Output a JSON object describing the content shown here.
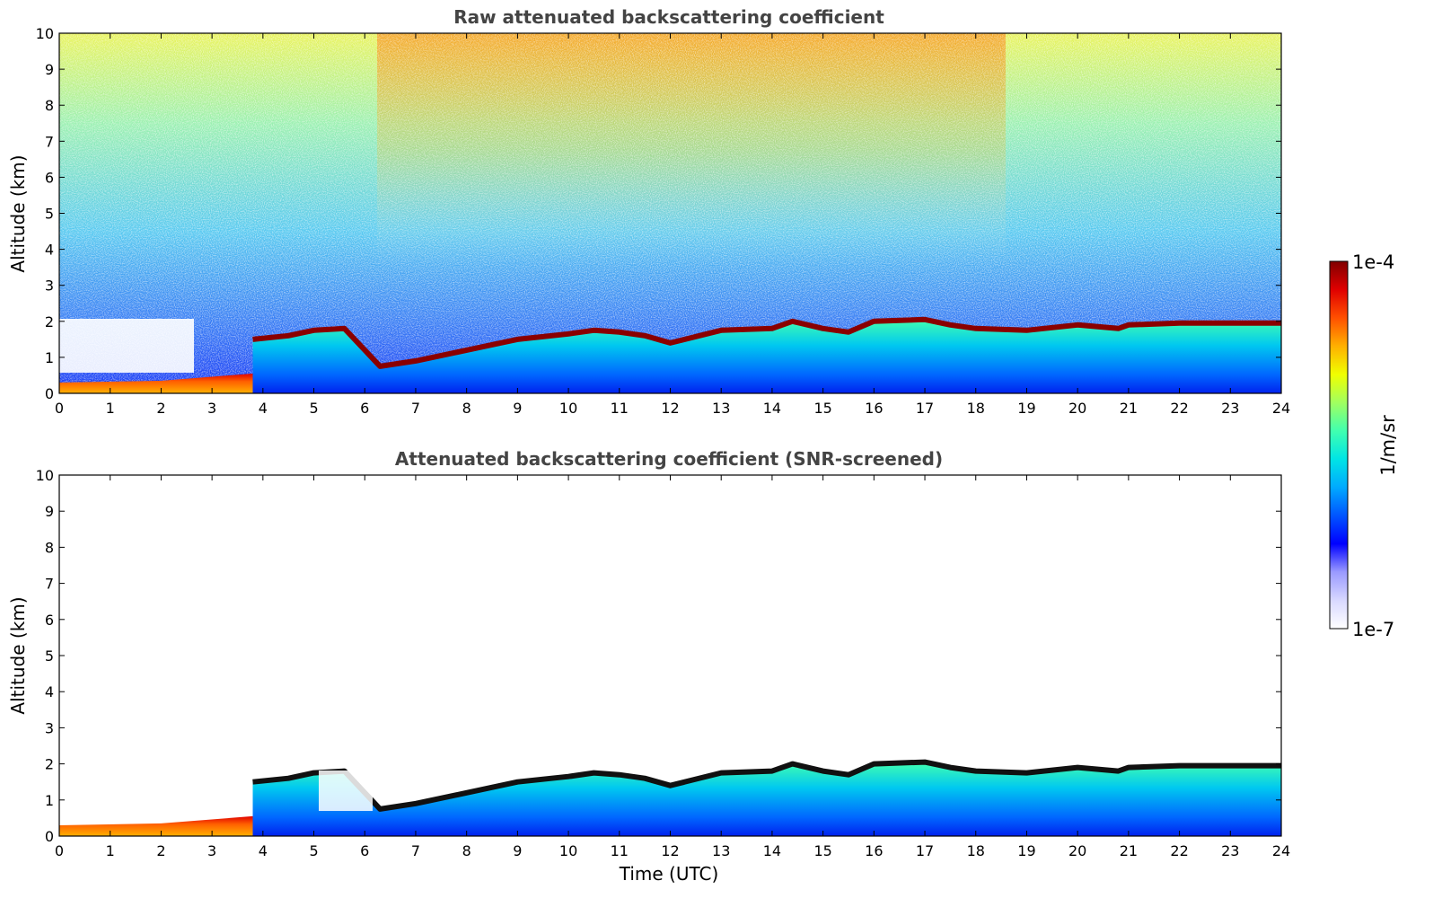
{
  "chart_data": [
    {
      "type": "heatmap",
      "title": "Raw attenuated backscattering coefficient",
      "xlabel": "",
      "ylabel": "Altitude (km)",
      "xlim": [
        0,
        24
      ],
      "ylim": [
        0,
        10
      ],
      "xticks": [
        0,
        1,
        2,
        3,
        4,
        5,
        6,
        7,
        8,
        9,
        10,
        11,
        12,
        13,
        14,
        15,
        16,
        17,
        18,
        19,
        20,
        21,
        22,
        23,
        24
      ],
      "yticks": [
        0,
        1,
        2,
        3,
        4,
        5,
        6,
        7,
        8,
        9,
        10
      ],
      "colorscale": "jet",
      "noise_background": true,
      "boundary_layer_top_km": {
        "x": [
          3.8,
          4.5,
          5.0,
          5.6,
          6.3,
          7.0,
          8.0,
          9.0,
          10.0,
          10.5,
          11.0,
          11.5,
          12.0,
          13.0,
          14.0,
          14.4,
          15.0,
          15.5,
          16.0,
          17.0,
          17.5,
          18.0,
          19.0,
          20.0,
          20.8,
          21.0,
          22.0,
          23.0,
          24.0
        ],
        "y": [
          1.5,
          1.6,
          1.75,
          1.8,
          0.75,
          0.9,
          1.2,
          1.5,
          1.65,
          1.75,
          1.7,
          1.6,
          1.4,
          1.75,
          1.8,
          2.0,
          1.8,
          1.7,
          2.0,
          2.05,
          1.9,
          1.8,
          1.75,
          1.9,
          1.8,
          1.9,
          1.95,
          1.95,
          1.95
        ]
      }
    },
    {
      "type": "heatmap",
      "title": "Attenuated backscattering coefficient (SNR-screened)",
      "xlabel": "Time (UTC)",
      "ylabel": "Altitude (km)",
      "xlim": [
        0,
        24
      ],
      "ylim": [
        0,
        10
      ],
      "xticks": [
        0,
        1,
        2,
        3,
        4,
        5,
        6,
        7,
        8,
        9,
        10,
        11,
        12,
        13,
        14,
        15,
        16,
        17,
        18,
        19,
        20,
        21,
        22,
        23,
        24
      ],
      "yticks": [
        0,
        1,
        2,
        3,
        4,
        5,
        6,
        7,
        8,
        9,
        10
      ],
      "colorscale": "jet",
      "noise_background": false,
      "boundary_layer_top_km": {
        "x": [
          3.8,
          4.5,
          5.0,
          5.6,
          6.3,
          7.0,
          8.0,
          9.0,
          10.0,
          10.5,
          11.0,
          11.5,
          12.0,
          13.0,
          14.0,
          14.4,
          15.0,
          15.5,
          16.0,
          17.0,
          17.5,
          18.0,
          19.0,
          20.0,
          20.8,
          21.0,
          22.0,
          23.0,
          24.0
        ],
        "y": [
          1.5,
          1.6,
          1.75,
          1.8,
          0.75,
          0.9,
          1.2,
          1.5,
          1.65,
          1.75,
          1.7,
          1.6,
          1.4,
          1.75,
          1.8,
          2.0,
          1.8,
          1.7,
          2.0,
          2.05,
          1.9,
          1.8,
          1.75,
          1.9,
          1.8,
          1.9,
          1.95,
          1.95,
          1.95
        ]
      }
    }
  ],
  "colorbar": {
    "max_label": "1e-4",
    "min_label": "1e-7",
    "label": "1/m/sr",
    "colors": [
      "#ffffff",
      "#d8d8ff",
      "#9a9aff",
      "#0000ff",
      "#0055ff",
      "#00aaff",
      "#00e5e5",
      "#40ffb0",
      "#a0ff60",
      "#f0ff00",
      "#ffb000",
      "#ff5000",
      "#e00000",
      "#800000"
    ]
  }
}
